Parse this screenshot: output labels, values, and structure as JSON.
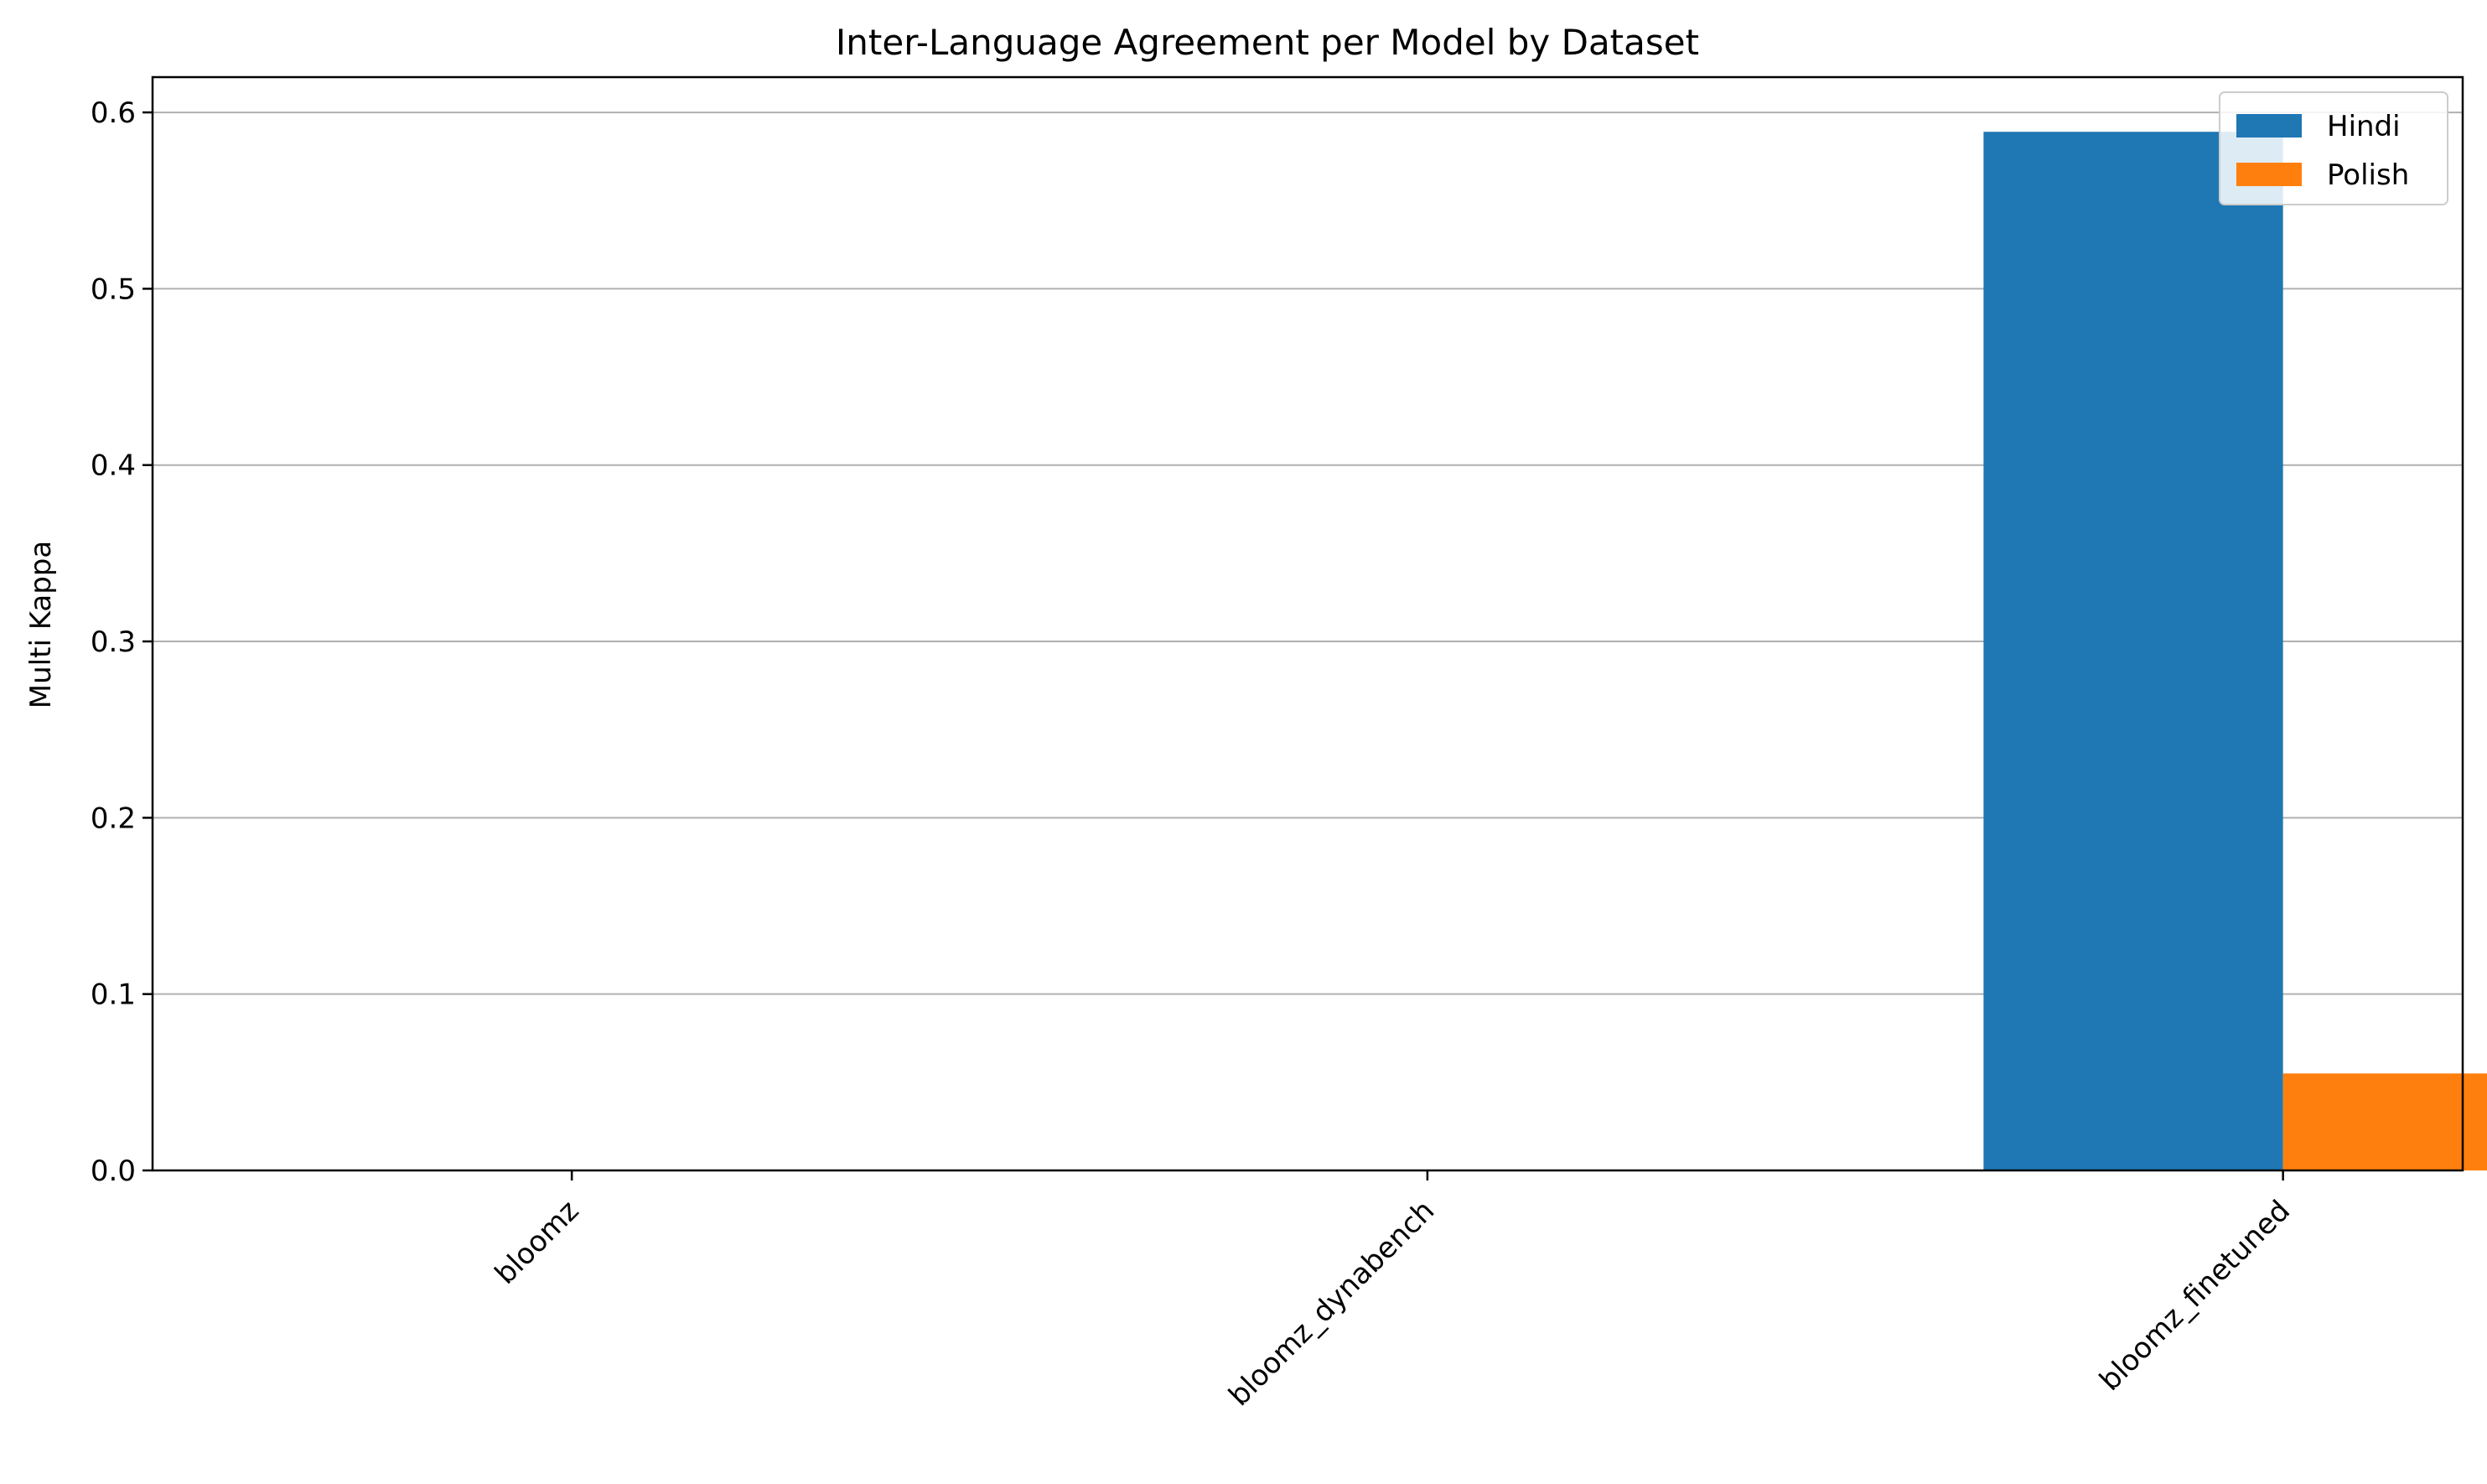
{
  "chart_data": {
    "type": "bar",
    "title": "Inter-Language Agreement per Model by Dataset",
    "xlabel": "",
    "ylabel": "Multi Kappa",
    "categories": [
      "bloomz",
      "bloomz_dynabench",
      "bloomz_finetuned"
    ],
    "series": [
      {
        "name": "Hindi",
        "values": [
          0.0,
          0.0,
          0.589
        ],
        "color": "#1f77b4"
      },
      {
        "name": "Polish",
        "values": [
          0.0,
          0.0,
          0.055
        ],
        "color": "#ff7f0e"
      }
    ],
    "ylim": [
      0,
      0.62
    ],
    "yticks": [
      "0.0",
      "0.1",
      "0.2",
      "0.3",
      "0.4",
      "0.5",
      "0.6"
    ],
    "grid": "y",
    "legend_position": "top-right",
    "xtick_rotation": 45
  }
}
